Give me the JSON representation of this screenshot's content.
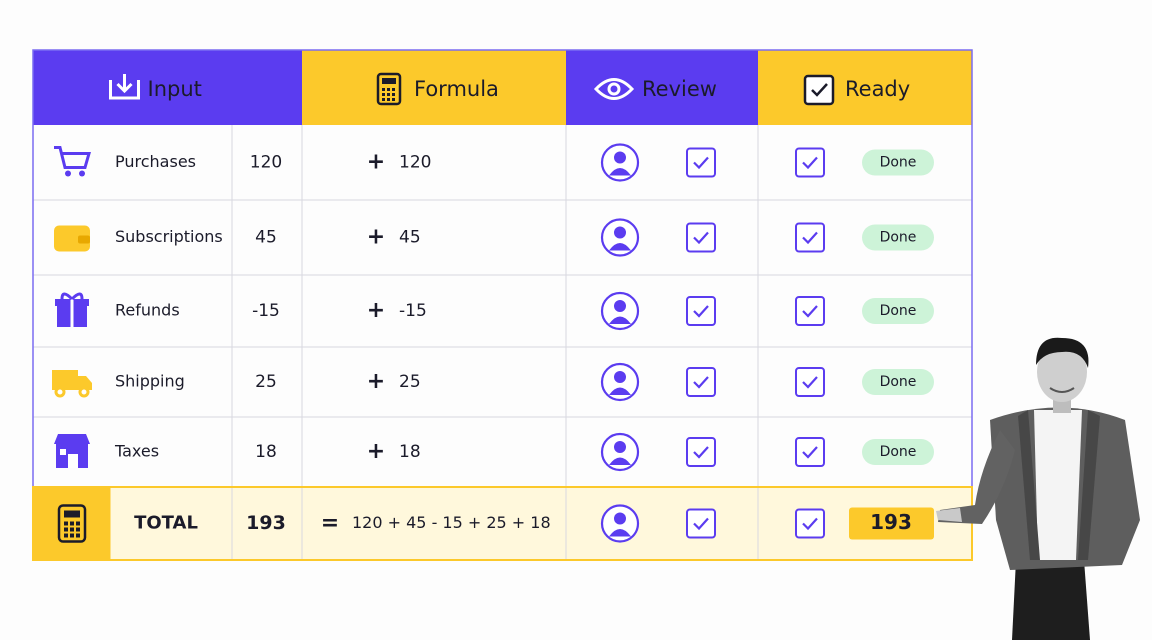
{
  "header": {
    "columns": [
      "Input",
      "Formula",
      "Review",
      "Ready"
    ]
  },
  "table": {
    "rows": [
      {
        "label": "Purchases",
        "value": 120,
        "operator": "+",
        "operand": 120,
        "status": "Done"
      },
      {
        "label": "Subscriptions",
        "value": 45,
        "operator": "+",
        "operand": 45,
        "status": "Done"
      },
      {
        "label": "Refunds",
        "value": -15,
        "operator": "+",
        "operand": -15,
        "status": "Done"
      },
      {
        "label": "Shipping",
        "value": 25,
        "operator": "+",
        "operand": 25,
        "status": "Done"
      },
      {
        "label": "Taxes",
        "value": 18,
        "operator": "+",
        "operand": 18,
        "status": "Done"
      }
    ],
    "total": {
      "label": "TOTAL",
      "value": 193,
      "operator": "=",
      "expression": "120 + 45 - 15 + 25 + 18",
      "result": 193
    }
  }
}
